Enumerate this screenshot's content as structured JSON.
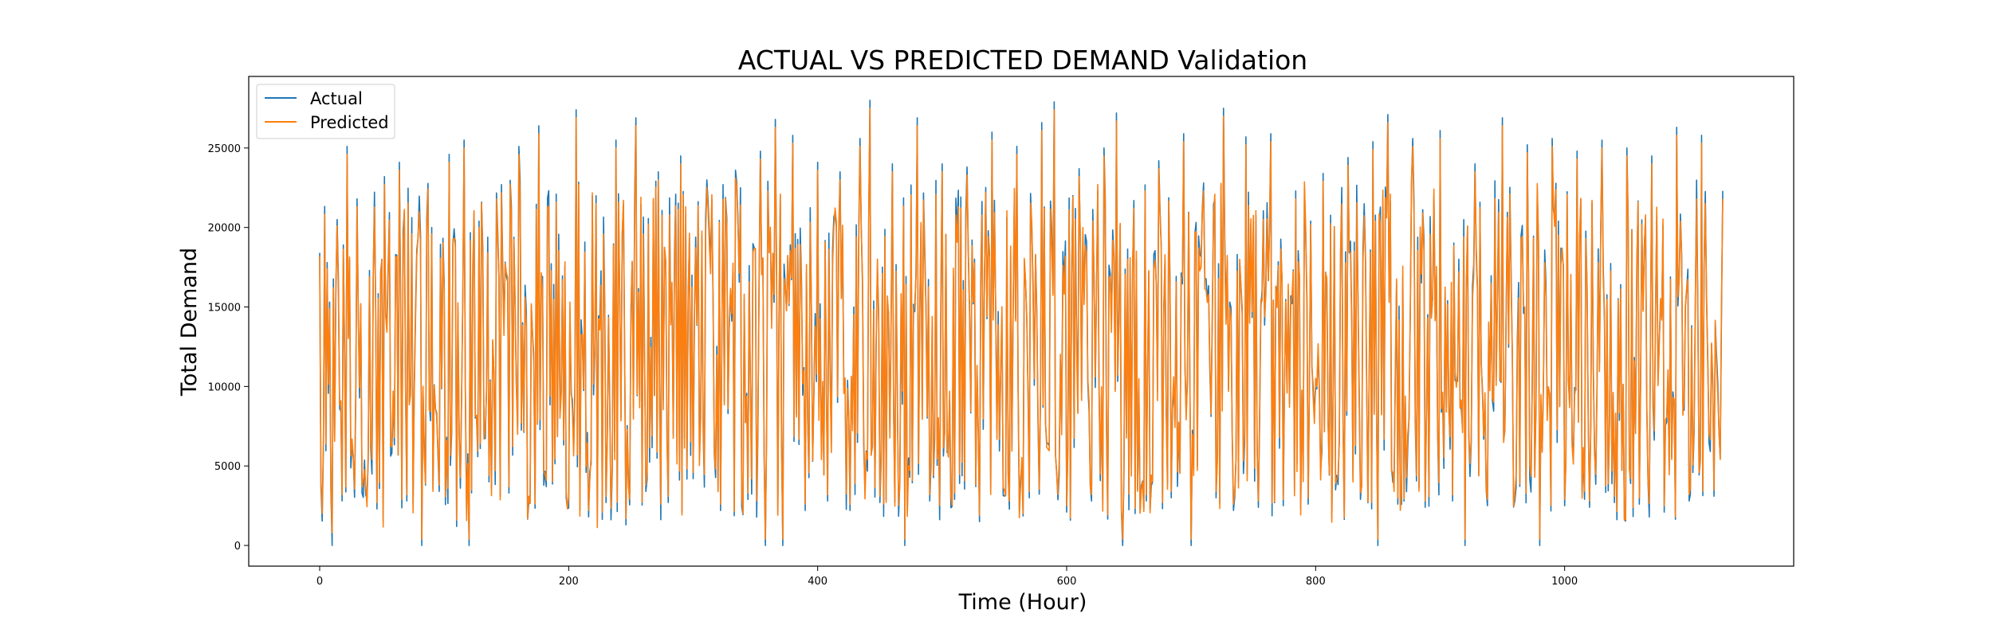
{
  "chart_data": {
    "type": "line",
    "title": "ACTUAL VS PREDICTED DEMAND Validation",
    "xlabel": "Time (Hour)",
    "ylabel": "Total Demand",
    "xlim": [
      -57,
      1184
    ],
    "ylim": [
      -1300,
      29500
    ],
    "xticks": [
      0,
      200,
      400,
      600,
      800,
      1000
    ],
    "yticks": [
      0,
      5000,
      10000,
      15000,
      20000,
      25000
    ],
    "grid": false,
    "legend": "top-left",
    "n_points": 1128,
    "series": [
      {
        "name": "Actual",
        "color": "#1f77b4",
        "anchors": [
          [
            0,
            18400
          ],
          [
            3,
            6200
          ],
          [
            6,
            17800
          ],
          [
            10,
            0
          ],
          [
            14,
            20500
          ],
          [
            18,
            2800
          ],
          [
            22,
            25100
          ],
          [
            26,
            6300
          ],
          [
            30,
            21800
          ],
          [
            34,
            3300
          ],
          [
            40,
            17300
          ],
          [
            46,
            2300
          ],
          [
            52,
            23200
          ],
          [
            58,
            5800
          ],
          [
            64,
            24100
          ],
          [
            70,
            2800
          ],
          [
            78,
            18600
          ],
          [
            82,
            0
          ],
          [
            90,
            20000
          ],
          [
            96,
            3400
          ],
          [
            104,
            24600
          ],
          [
            110,
            1200
          ],
          [
            116,
            25500
          ],
          [
            120,
            0
          ],
          [
            128,
            20400
          ],
          [
            136,
            4000
          ],
          [
            146,
            22700
          ],
          [
            152,
            3300
          ],
          [
            160,
            25100
          ],
          [
            168,
            2700
          ],
          [
            176,
            26400
          ],
          [
            182,
            3700
          ],
          [
            190,
            22100
          ],
          [
            198,
            3000
          ],
          [
            206,
            27400
          ],
          [
            214,
            4600
          ],
          [
            222,
            22000
          ],
          [
            230,
            2700
          ],
          [
            238,
            25500
          ],
          [
            246,
            1300
          ],
          [
            254,
            26900
          ],
          [
            262,
            3400
          ],
          [
            272,
            23500
          ],
          [
            280,
            2700
          ],
          [
            290,
            24500
          ],
          [
            300,
            4200
          ],
          [
            312,
            21600
          ],
          [
            322,
            2200
          ],
          [
            334,
            23600
          ],
          [
            344,
            2900
          ],
          [
            354,
            24800
          ],
          [
            358,
            0
          ],
          [
            366,
            26800
          ],
          [
            372,
            0
          ],
          [
            380,
            25800
          ],
          [
            390,
            2200
          ],
          [
            400,
            24100
          ],
          [
            408,
            2800
          ],
          [
            418,
            23500
          ],
          [
            426,
            2200
          ],
          [
            434,
            25600
          ],
          [
            442,
            28000
          ],
          [
            450,
            2700
          ],
          [
            460,
            24000
          ],
          [
            470,
            0
          ],
          [
            480,
            26900
          ],
          [
            490,
            2800
          ],
          [
            500,
            24000
          ],
          [
            510,
            2900
          ],
          [
            520,
            23800
          ],
          [
            530,
            1500
          ],
          [
            540,
            26000
          ],
          [
            550,
            3100
          ],
          [
            560,
            25100
          ],
          [
            570,
            3000
          ],
          [
            580,
            26600
          ],
          [
            590,
            27900
          ],
          [
            600,
            2100
          ],
          [
            610,
            23700
          ],
          [
            620,
            2800
          ],
          [
            630,
            25000
          ],
          [
            640,
            27200
          ],
          [
            645,
            0
          ],
          [
            654,
            21700
          ],
          [
            664,
            2800
          ],
          [
            674,
            24200
          ],
          [
            684,
            3000
          ],
          [
            694,
            25900
          ],
          [
            700,
            0
          ],
          [
            710,
            22800
          ],
          [
            720,
            3000
          ],
          [
            726,
            27500
          ],
          [
            734,
            2200
          ],
          [
            744,
            25700
          ],
          [
            754,
            2400
          ],
          [
            764,
            25900
          ],
          [
            774,
            2500
          ],
          [
            784,
            22300
          ],
          [
            794,
            2600
          ],
          [
            806,
            23400
          ],
          [
            816,
            3500
          ],
          [
            826,
            24400
          ],
          [
            836,
            2900
          ],
          [
            846,
            25400
          ],
          [
            850,
            0
          ],
          [
            858,
            27100
          ],
          [
            866,
            2600
          ],
          [
            878,
            25600
          ],
          [
            888,
            2400
          ],
          [
            900,
            26100
          ],
          [
            910,
            2800
          ],
          [
            920,
            0
          ],
          [
            928,
            24000
          ],
          [
            938,
            2500
          ],
          [
            950,
            26900
          ],
          [
            960,
            2800
          ],
          [
            970,
            25200
          ],
          [
            980,
            0
          ],
          [
            990,
            25600
          ],
          [
            1000,
            2500
          ],
          [
            1010,
            24800
          ],
          [
            1020,
            2400
          ],
          [
            1030,
            25500
          ],
          [
            1040,
            2700
          ],
          [
            1050,
            25000
          ],
          [
            1060,
            2600
          ],
          [
            1070,
            24500
          ],
          [
            1080,
            2100
          ],
          [
            1090,
            26300
          ],
          [
            1100,
            2800
          ],
          [
            1110,
            25800
          ],
          [
            1120,
            3100
          ],
          [
            1127,
            22300
          ]
        ]
      },
      {
        "name": "Predicted",
        "color": "#ff7f0e",
        "anchors": [
          [
            0,
            18200
          ],
          [
            3,
            6700
          ],
          [
            6,
            17400
          ],
          [
            10,
            800
          ],
          [
            14,
            20100
          ],
          [
            18,
            3200
          ],
          [
            22,
            24600
          ],
          [
            26,
            6700
          ],
          [
            30,
            21300
          ],
          [
            34,
            3700
          ],
          [
            40,
            16900
          ],
          [
            46,
            2700
          ],
          [
            52,
            22700
          ],
          [
            58,
            6200
          ],
          [
            64,
            23600
          ],
          [
            70,
            3200
          ],
          [
            78,
            18200
          ],
          [
            82,
            400
          ],
          [
            90,
            19600
          ],
          [
            96,
            3800
          ],
          [
            104,
            24100
          ],
          [
            110,
            1600
          ],
          [
            116,
            25000
          ],
          [
            120,
            400
          ],
          [
            128,
            20000
          ],
          [
            136,
            4400
          ],
          [
            146,
            22200
          ],
          [
            152,
            3700
          ],
          [
            160,
            24600
          ],
          [
            168,
            3100
          ],
          [
            176,
            25900
          ],
          [
            182,
            4100
          ],
          [
            190,
            21600
          ],
          [
            198,
            3400
          ],
          [
            206,
            26900
          ],
          [
            214,
            5000
          ],
          [
            222,
            21500
          ],
          [
            230,
            3100
          ],
          [
            238,
            25000
          ],
          [
            246,
            1700
          ],
          [
            254,
            26400
          ],
          [
            262,
            3800
          ],
          [
            272,
            23000
          ],
          [
            280,
            3100
          ],
          [
            290,
            24000
          ],
          [
            300,
            4600
          ],
          [
            312,
            21100
          ],
          [
            322,
            2600
          ],
          [
            334,
            23100
          ],
          [
            344,
            3300
          ],
          [
            354,
            24300
          ],
          [
            358,
            400
          ],
          [
            366,
            26300
          ],
          [
            372,
            400
          ],
          [
            380,
            25300
          ],
          [
            390,
            2600
          ],
          [
            400,
            23600
          ],
          [
            408,
            3200
          ],
          [
            418,
            23000
          ],
          [
            426,
            2600
          ],
          [
            434,
            25100
          ],
          [
            442,
            27500
          ],
          [
            450,
            3100
          ],
          [
            460,
            23500
          ],
          [
            470,
            400
          ],
          [
            480,
            26400
          ],
          [
            490,
            3200
          ],
          [
            500,
            23500
          ],
          [
            510,
            3300
          ],
          [
            520,
            23300
          ],
          [
            530,
            1900
          ],
          [
            540,
            25500
          ],
          [
            550,
            3500
          ],
          [
            560,
            24600
          ],
          [
            570,
            3400
          ],
          [
            580,
            26100
          ],
          [
            590,
            27400
          ],
          [
            600,
            2500
          ],
          [
            610,
            23200
          ],
          [
            620,
            3200
          ],
          [
            630,
            24500
          ],
          [
            640,
            26700
          ],
          [
            645,
            400
          ],
          [
            654,
            21200
          ],
          [
            664,
            3200
          ],
          [
            674,
            23700
          ],
          [
            684,
            3400
          ],
          [
            694,
            25400
          ],
          [
            700,
            400
          ],
          [
            710,
            22300
          ],
          [
            720,
            3400
          ],
          [
            726,
            27000
          ],
          [
            734,
            2600
          ],
          [
            744,
            25200
          ],
          [
            754,
            2800
          ],
          [
            764,
            25400
          ],
          [
            774,
            2900
          ],
          [
            784,
            21800
          ],
          [
            794,
            3000
          ],
          [
            806,
            22900
          ],
          [
            816,
            3900
          ],
          [
            826,
            23900
          ],
          [
            836,
            3300
          ],
          [
            846,
            24900
          ],
          [
            850,
            400
          ],
          [
            858,
            26600
          ],
          [
            866,
            3000
          ],
          [
            878,
            25100
          ],
          [
            888,
            2800
          ],
          [
            900,
            25600
          ],
          [
            910,
            3200
          ],
          [
            920,
            400
          ],
          [
            928,
            23500
          ],
          [
            938,
            2900
          ],
          [
            950,
            26400
          ],
          [
            960,
            3200
          ],
          [
            970,
            24700
          ],
          [
            980,
            400
          ],
          [
            990,
            25100
          ],
          [
            1000,
            2900
          ],
          [
            1010,
            24300
          ],
          [
            1020,
            2800
          ],
          [
            1030,
            25000
          ],
          [
            1040,
            3100
          ],
          [
            1050,
            24500
          ],
          [
            1060,
            3000
          ],
          [
            1070,
            24000
          ],
          [
            1080,
            2500
          ],
          [
            1090,
            25800
          ],
          [
            1100,
            3200
          ],
          [
            1110,
            25300
          ],
          [
            1120,
            3500
          ],
          [
            1127,
            21800
          ]
        ]
      }
    ]
  }
}
